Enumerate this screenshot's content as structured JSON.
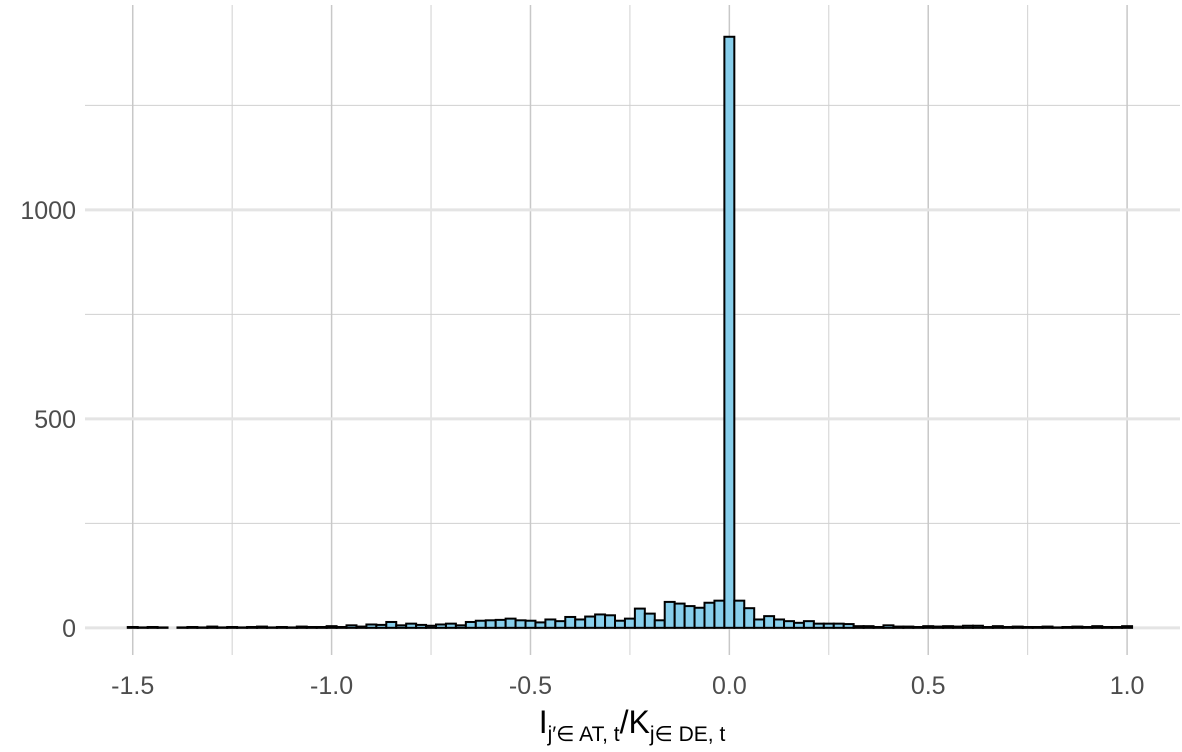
{
  "chart_data": {
    "type": "histogram",
    "x_label": {
      "main1": "I",
      "sub1": "j′∈ AT, t",
      "sep": "/",
      "main2": "K",
      "sub2": "j∈ DE, t"
    },
    "bins": [
      -1.5125,
      -1.4875,
      -1.4625,
      -1.4375,
      -1.4125,
      -1.3875,
      -1.3625,
      -1.3375,
      -1.3125,
      -1.2875,
      -1.2625,
      -1.2375,
      -1.2125,
      -1.1875,
      -1.1625,
      -1.1375,
      -1.1125,
      -1.0875,
      -1.0625,
      -1.0375,
      -1.0125,
      -0.9875,
      -0.9625,
      -0.9375,
      -0.9125,
      -0.8875,
      -0.8625,
      -0.8375,
      -0.8125,
      -0.7875,
      -0.7625,
      -0.7375,
      -0.7125,
      -0.6875,
      -0.6625,
      -0.6375,
      -0.6125,
      -0.5875,
      -0.5625,
      -0.5375,
      -0.5125,
      -0.4875,
      -0.4625,
      -0.4375,
      -0.4125,
      -0.3875,
      -0.3625,
      -0.3375,
      -0.3125,
      -0.2875,
      -0.2625,
      -0.2375,
      -0.2125,
      -0.1875,
      -0.1625,
      -0.1375,
      -0.1125,
      -0.0875,
      -0.0625,
      -0.0375,
      -0.0125,
      0.0125,
      0.0375,
      0.0625,
      0.0875,
      0.1125,
      0.1375,
      0.1625,
      0.1875,
      0.2125,
      0.2375,
      0.2625,
      0.2875,
      0.3125,
      0.3375,
      0.3625,
      0.3875,
      0.4125,
      0.4375,
      0.4625,
      0.4875,
      0.5125,
      0.5375,
      0.5625,
      0.5875,
      0.6125,
      0.6375,
      0.6625,
      0.6875,
      0.7125,
      0.7375,
      0.7625,
      0.7875,
      0.8125,
      0.8375,
      0.8625,
      0.8875,
      0.9125,
      0.9375,
      0.9625,
      0.9875,
      1.0125
    ],
    "values": [
      2,
      1,
      2,
      1,
      0,
      1,
      2,
      1,
      3,
      1,
      2,
      1,
      2,
      3,
      1,
      2,
      1,
      3,
      2,
      2,
      4,
      2,
      6,
      3,
      8,
      7,
      14,
      6,
      10,
      7,
      5,
      8,
      10,
      6,
      14,
      17,
      18,
      19,
      22,
      18,
      17,
      13,
      20,
      16,
      26,
      20,
      27,
      32,
      30,
      17,
      22,
      46,
      34,
      18,
      62,
      58,
      52,
      48,
      60,
      65,
      1414,
      65,
      47,
      20,
      28,
      20,
      16,
      12,
      16,
      10,
      10,
      10,
      9,
      4,
      4,
      2,
      6,
      3,
      3,
      2,
      4,
      3,
      4,
      3,
      5,
      5,
      2,
      4,
      2,
      3,
      2,
      2,
      3,
      1,
      2,
      3,
      2,
      4,
      2,
      2,
      4
    ],
    "color": "#87ceeb",
    "edgecolor": "#000000",
    "xlim": [
      -1.62,
      1.133
    ],
    "ylim": [
      -65,
      1490
    ],
    "xticks": [
      -1.5,
      {
        "value": -1,
        "label": "-1.0"
      },
      -0.5,
      {
        "value": 0,
        "label": "0.0"
      },
      0.5,
      {
        "value": 1,
        "label": "1.0"
      }
    ],
    "yticks": [
      0,
      500,
      1000
    ],
    "xminor": [
      -1.25,
      -0.75,
      -0.25,
      0.25,
      0.75
    ],
    "yminor": [
      250,
      750,
      1250
    ],
    "grid": true
  }
}
